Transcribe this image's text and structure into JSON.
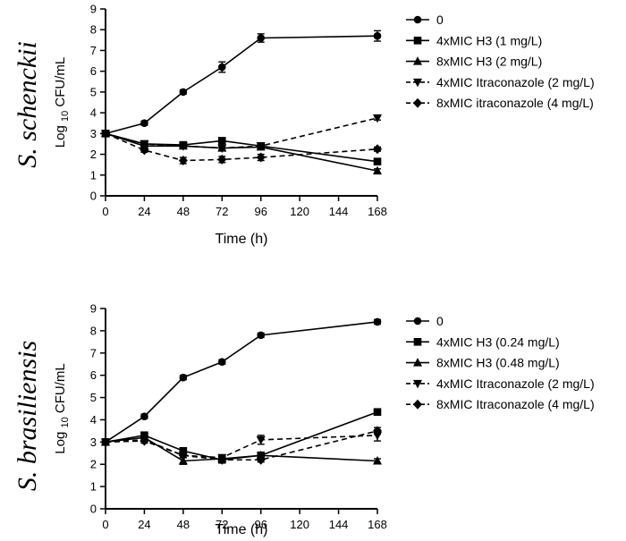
{
  "chart_data": [
    {
      "type": "line",
      "side_title": "S. schenckii",
      "xlabel": "Time (h)",
      "ylabel": {
        "pre": "Log",
        "sub": "10",
        "post": "CFU/mL"
      },
      "xlim": [
        0,
        168
      ],
      "ylim": [
        0,
        9
      ],
      "x_ticks": [
        0,
        24,
        48,
        72,
        96,
        120,
        144,
        168
      ],
      "y_ticks": [
        0,
        1,
        2,
        3,
        4,
        5,
        6,
        7,
        8,
        9
      ],
      "x": [
        0,
        24,
        48,
        72,
        96,
        168
      ],
      "series": [
        {
          "name": "0",
          "marker": "circle",
          "dash": "solid",
          "values": [
            3.0,
            3.5,
            5.0,
            6.2,
            7.6,
            7.7
          ],
          "errors": [
            0,
            0.1,
            0.1,
            0.25,
            0.2,
            0.25
          ]
        },
        {
          "name": "4xMIC H3 (1 mg/L)",
          "marker": "square",
          "dash": "solid",
          "values": [
            3.0,
            2.5,
            2.45,
            2.65,
            2.4,
            1.65
          ],
          "errors": [
            0,
            0.1,
            0.1,
            0.1,
            0.1,
            0.1
          ]
        },
        {
          "name": "8xMIC H3 (2 mg/L)",
          "marker": "triangle-up",
          "dash": "solid",
          "values": [
            3.0,
            2.4,
            2.4,
            2.3,
            2.35,
            1.2
          ],
          "errors": [
            0,
            0.1,
            0.1,
            0.1,
            0.1,
            0.1
          ]
        },
        {
          "name": "4xMIC Itraconazole (2 mg/L)",
          "marker": "triangle-down",
          "dash": "dashed",
          "values": [
            3.0,
            2.5,
            2.4,
            2.3,
            2.4,
            3.75
          ],
          "errors": [
            0,
            0.1,
            0.1,
            0.1,
            0.1,
            0.1
          ]
        },
        {
          "name": "8xMIC itraconazole (4 mg/L)",
          "marker": "diamond",
          "dash": "dashed",
          "values": [
            3.0,
            2.2,
            1.7,
            1.75,
            1.85,
            2.25
          ],
          "errors": [
            0,
            0.1,
            0.15,
            0.15,
            0.15,
            0.1
          ]
        }
      ]
    },
    {
      "type": "line",
      "side_title": "S. brasiliensis",
      "xlabel": "Time (h)",
      "ylabel": {
        "pre": "Log",
        "sub": "10",
        "post": "CFU/mL"
      },
      "xlim": [
        0,
        168
      ],
      "ylim": [
        0,
        9
      ],
      "x_ticks": [
        0,
        24,
        48,
        72,
        96,
        120,
        144,
        168
      ],
      "y_ticks": [
        0,
        1,
        2,
        3,
        4,
        5,
        6,
        7,
        8,
        9
      ],
      "x": [
        0,
        24,
        48,
        72,
        96,
        168
      ],
      "series": [
        {
          "name": "0",
          "marker": "circle",
          "dash": "solid",
          "values": [
            3.0,
            4.15,
            5.9,
            6.6,
            7.8,
            8.4
          ],
          "errors": [
            0,
            0.1,
            0.1,
            0.1,
            0.1,
            0.1
          ]
        },
        {
          "name": "4xMIC H3 (0.24 mg/L)",
          "marker": "square",
          "dash": "solid",
          "values": [
            3.0,
            3.3,
            2.6,
            2.2,
            2.4,
            4.35
          ],
          "errors": [
            0,
            0.15,
            0.1,
            0.1,
            0.1,
            0.1
          ]
        },
        {
          "name": "8xMIC H3 (0.48 mg/L)",
          "marker": "triangle-up",
          "dash": "solid",
          "values": [
            3.0,
            3.2,
            2.15,
            2.25,
            2.4,
            2.15
          ],
          "errors": [
            0,
            0.1,
            0.15,
            0.1,
            0.1,
            0.1
          ]
        },
        {
          "name": "4xMIC Itraconazole (2 mg/L)",
          "marker": "triangle-down",
          "dash": "dashed",
          "values": [
            3.0,
            3.1,
            2.4,
            2.3,
            3.1,
            3.3
          ],
          "errors": [
            0,
            0.1,
            0.1,
            0.1,
            0.2,
            0.25
          ]
        },
        {
          "name": "8xMIC Itraconazole (4 mg/L)",
          "marker": "diamond",
          "dash": "dashed",
          "values": [
            3.0,
            3.05,
            2.4,
            2.2,
            2.2,
            3.5
          ],
          "errors": [
            0,
            0.1,
            0.1,
            0.1,
            0.1,
            0.15
          ]
        }
      ]
    }
  ]
}
